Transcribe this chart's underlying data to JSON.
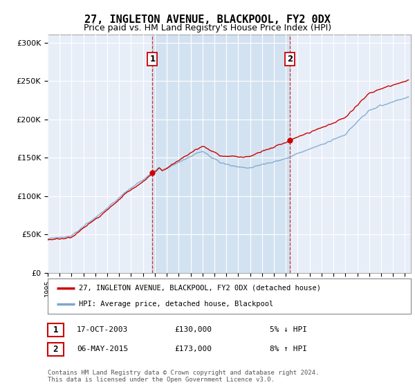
{
  "title": "27, INGLETON AVENUE, BLACKPOOL, FY2 0DX",
  "subtitle": "Price paid vs. HM Land Registry's House Price Index (HPI)",
  "ylabel_ticks": [
    "£0",
    "£50K",
    "£100K",
    "£150K",
    "£200K",
    "£250K",
    "£300K"
  ],
  "ytick_values": [
    0,
    50000,
    100000,
    150000,
    200000,
    250000,
    300000
  ],
  "ylim": [
    0,
    310000
  ],
  "xlim_start": 1995.0,
  "xlim_end": 2025.5,
  "xticks": [
    1995,
    1996,
    1997,
    1998,
    1999,
    2000,
    2001,
    2002,
    2003,
    2004,
    2005,
    2006,
    2007,
    2008,
    2009,
    2010,
    2011,
    2012,
    2013,
    2014,
    2015,
    2016,
    2017,
    2018,
    2019,
    2020,
    2021,
    2022,
    2023,
    2024,
    2025
  ],
  "purchase1_x": 2003.8,
  "purchase1_y": 130000,
  "purchase2_x": 2015.35,
  "purchase2_y": 173000,
  "annotation1_date": "17-OCT-2003",
  "annotation1_price": "£130,000",
  "annotation1_hpi": "5% ↓ HPI",
  "annotation2_date": "06-MAY-2015",
  "annotation2_price": "£173,000",
  "annotation2_hpi": "8% ↑ HPI",
  "line1_color": "#cc0000",
  "line2_color": "#7ba7cc",
  "shade_color": "#d0e0f0",
  "bg_color": "#e8eef8",
  "plot_bg": "#ffffff",
  "legend1_label": "27, INGLETON AVENUE, BLACKPOOL, FY2 0DX (detached house)",
  "legend2_label": "HPI: Average price, detached house, Blackpool",
  "footer": "Contains HM Land Registry data © Crown copyright and database right 2024.\nThis data is licensed under the Open Government Licence v3.0.",
  "title_fontsize": 11,
  "subtitle_fontsize": 9
}
